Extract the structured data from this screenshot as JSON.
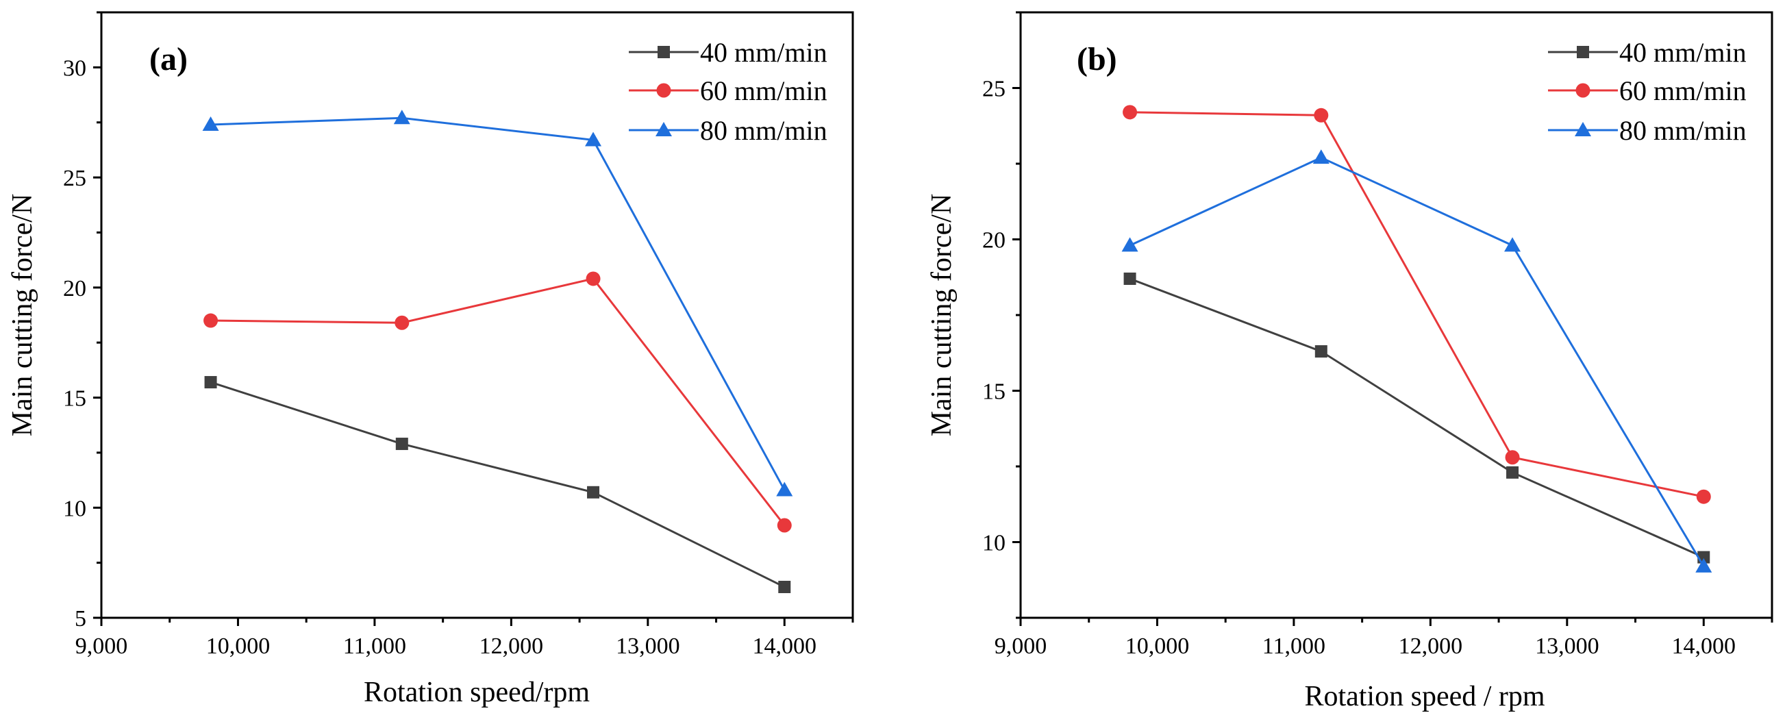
{
  "chart_data": [
    {
      "type": "line",
      "panel_label": "(a)",
      "xlabel": "Rotation speed/rpm",
      "ylabel": "Main cutting force/N",
      "xlim": [
        9000,
        14500
      ],
      "ylim": [
        5,
        32.5
      ],
      "x_ticks": [
        9000,
        10000,
        11000,
        12000,
        13000,
        14000
      ],
      "x_tick_labels": [
        "9,000",
        "10,000",
        "11,000",
        "12,000",
        "13,000",
        "14,000"
      ],
      "y_ticks": [
        5,
        10,
        15,
        20,
        25,
        30
      ],
      "y_tick_labels": [
        "5",
        "10",
        "15",
        "20",
        "25",
        "30"
      ],
      "legend_position": "top-right",
      "x": [
        9800,
        11200,
        12600,
        14000
      ],
      "series": [
        {
          "name": "40 mm/min",
          "values": [
            15.7,
            12.9,
            10.7,
            6.4
          ],
          "color": "#404040",
          "marker": "square"
        },
        {
          "name": "60 mm/min",
          "values": [
            18.5,
            18.4,
            20.4,
            9.2
          ],
          "color": "#e8383b",
          "marker": "circle"
        },
        {
          "name": "80 mm/min",
          "values": [
            27.4,
            27.7,
            26.7,
            10.8
          ],
          "color": "#1f6fdc",
          "marker": "triangle"
        }
      ]
    },
    {
      "type": "line",
      "panel_label": "(b)",
      "xlabel": "Rotation speed / rpm",
      "ylabel": "Main cutting force/N",
      "xlim": [
        9000,
        14500
      ],
      "ylim": [
        7.5,
        27.5
      ],
      "x_ticks": [
        9000,
        10000,
        11000,
        12000,
        13000,
        14000
      ],
      "x_tick_labels": [
        "9,000",
        "10,000",
        "11,000",
        "12,000",
        "13,000",
        "14,000"
      ],
      "y_ticks": [
        10,
        15,
        20,
        25
      ],
      "y_tick_labels": [
        "10",
        "15",
        "20",
        "25"
      ],
      "legend_position": "top-right",
      "x": [
        9800,
        11200,
        12600,
        14000
      ],
      "series": [
        {
          "name": "40 mm/min",
          "values": [
            18.7,
            16.3,
            12.3,
            9.5
          ],
          "color": "#404040",
          "marker": "square"
        },
        {
          "name": "60 mm/min",
          "values": [
            24.2,
            24.1,
            12.8,
            11.5
          ],
          "color": "#e8383b",
          "marker": "circle"
        },
        {
          "name": "80 mm/min",
          "values": [
            19.8,
            22.7,
            19.8,
            9.2
          ],
          "color": "#1f6fdc",
          "marker": "triangle"
        }
      ]
    }
  ]
}
